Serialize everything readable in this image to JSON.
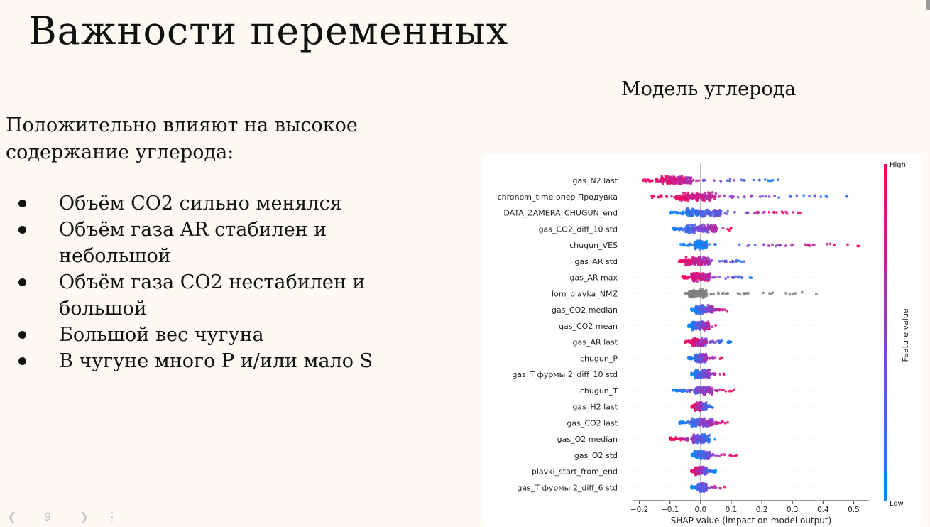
{
  "slide": {
    "title": "Важности переменных",
    "model_title": "Модель углерода",
    "intro": "Положительно влияют на высокое содержание углерода:",
    "bullets": [
      "Объём CO2 сильно менялся",
      "Объём газа AR стабилен и небольшой",
      "Объём газа CO2 нестабилен и большой",
      "Большой вес чугуна",
      "В чугуне много P и/или мало S"
    ],
    "page_number": "9",
    "nav_prev_icon": "chevron-left-icon",
    "nav_next_icon": "chevron-right-icon",
    "nav_more_icon": "more-vertical-icon"
  },
  "colors": {
    "background": "#fdfaf3",
    "high": "#ff0052",
    "low": "#008bfb",
    "neutral": "#808080"
  },
  "chart_data": {
    "type": "scatter",
    "subtype": "shap_beeswarm",
    "xlabel": "SHAP value (impact on model output)",
    "xlim": [
      -0.22,
      0.55
    ],
    "xticks": [
      -0.2,
      -0.1,
      0.0,
      0.1,
      0.2,
      0.3,
      0.4,
      0.5
    ],
    "xtick_labels": [
      "−0.2",
      "−0.1",
      "0.0",
      "0.1",
      "0.2",
      "0.3",
      "0.4",
      "0.5"
    ],
    "colorbar": {
      "label": "Feature value",
      "high_label": "High",
      "low_label": "Low"
    },
    "features": [
      {
        "name": "gas_N2 last",
        "min": -0.19,
        "max": 0.28,
        "core": [
          -0.13,
          -0.03
        ],
        "low_right": true
      },
      {
        "name": "chronom_time опер Продувка",
        "min": -0.16,
        "max": 0.5,
        "core": [
          -0.08,
          0.05
        ],
        "low_right": true
      },
      {
        "name": "DATA_ZAMERA_CHUGUN_end",
        "min": -0.1,
        "max": 0.33,
        "core": [
          -0.05,
          0.07
        ],
        "low_right": false
      },
      {
        "name": "gas_CO2_diff_10 std",
        "min": -0.09,
        "max": 0.12,
        "core": [
          -0.05,
          0.05
        ],
        "low_right": false
      },
      {
        "name": "chugun_VES",
        "min": -0.07,
        "max": 0.52,
        "core": [
          -0.02,
          0.02
        ],
        "low_right": false
      },
      {
        "name": "gas_AR std",
        "min": -0.07,
        "max": 0.17,
        "core": [
          -0.05,
          0.03
        ],
        "low_right": true
      },
      {
        "name": "gas_AR max",
        "min": -0.06,
        "max": 0.17,
        "core": [
          -0.03,
          0.03
        ],
        "low_right": true
      },
      {
        "name": "lom_plavka_NMZ",
        "min": -0.05,
        "max": 0.38,
        "core": [
          -0.04,
          0.02
        ],
        "neutral": true
      },
      {
        "name": "gas_CO2 median",
        "min": -0.03,
        "max": 0.09,
        "core": [
          -0.02,
          0.04
        ],
        "low_right": false
      },
      {
        "name": "gas_CO2 mean",
        "min": -0.04,
        "max": 0.05,
        "core": [
          -0.03,
          0.03
        ],
        "low_right": false
      },
      {
        "name": "gas_AR last",
        "min": -0.05,
        "max": 0.1,
        "core": [
          -0.03,
          0.02
        ],
        "low_right": true
      },
      {
        "name": "chugun_P",
        "min": -0.04,
        "max": 0.07,
        "core": [
          -0.02,
          0.02
        ],
        "low_right": false
      },
      {
        "name": "gas_T фурмы 2_diff_10 std",
        "min": -0.03,
        "max": 0.08,
        "core": [
          -0.02,
          0.03
        ],
        "low_right": false
      },
      {
        "name": "chugun_T",
        "min": -0.09,
        "max": 0.11,
        "core": [
          -0.02,
          0.04
        ],
        "low_right": false
      },
      {
        "name": "gas_H2 last",
        "min": -0.03,
        "max": 0.04,
        "core": [
          -0.02,
          0.02
        ],
        "low_right": true
      },
      {
        "name": "gas_CO2 last",
        "min": -0.07,
        "max": 0.1,
        "core": [
          -0.03,
          0.04
        ],
        "low_right": false
      },
      {
        "name": "gas_O2 median",
        "min": -0.1,
        "max": 0.05,
        "core": [
          -0.03,
          0.03
        ],
        "low_right": true
      },
      {
        "name": "gas_O2 std",
        "min": -0.03,
        "max": 0.12,
        "core": [
          -0.02,
          0.03
        ],
        "low_right": false
      },
      {
        "name": "plavki_start_from_end",
        "min": -0.03,
        "max": 0.05,
        "core": [
          -0.02,
          0.02
        ],
        "low_right": true
      },
      {
        "name": "gas_T фурмы 2_diff_6 std",
        "min": -0.03,
        "max": 0.08,
        "core": [
          -0.01,
          0.02
        ],
        "low_right": false
      }
    ]
  }
}
